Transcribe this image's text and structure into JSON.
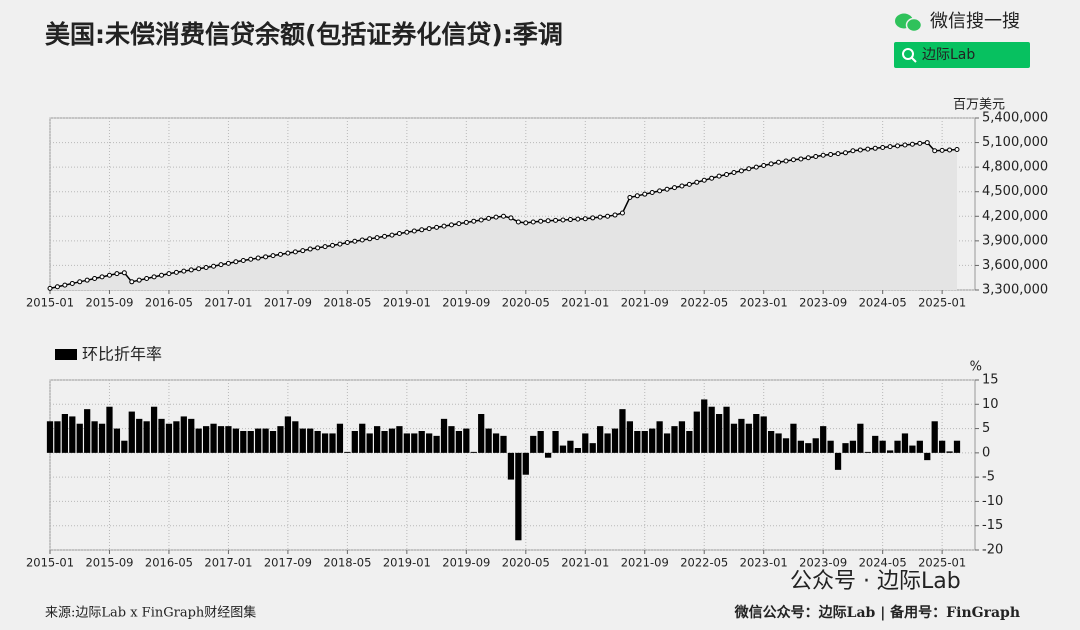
{
  "page": {
    "title": "美国:未偿消费信贷余额(包括证券化信贷):季调",
    "search_brand": "微信搜一搜",
    "search_button": "边际Lab",
    "source": "来源:边际Lab x FinGraph财经图集",
    "footer_right": "微信公众号：边际Lab  |  备用号：FinGraph",
    "watermark": "公众号 · 边际Lab"
  },
  "chart_data": [
    {
      "type": "line",
      "y_label": "百万美元",
      "color": "#000000",
      "fill": "#e4e4e4",
      "grid": true,
      "categories": [
        "2015-01",
        null,
        null,
        null,
        null,
        null,
        null,
        null,
        "2015-09",
        null,
        null,
        null,
        null,
        null,
        null,
        null,
        "2016-05",
        null,
        null,
        null,
        null,
        null,
        null,
        null,
        "2017-01",
        null,
        null,
        null,
        null,
        null,
        null,
        null,
        "2017-09",
        null,
        null,
        null,
        null,
        null,
        null,
        null,
        "2018-05",
        null,
        null,
        null,
        null,
        null,
        null,
        null,
        "2019-01",
        null,
        null,
        null,
        null,
        null,
        null,
        null,
        "2019-09",
        null,
        null,
        null,
        null,
        null,
        null,
        null,
        "2020-05",
        null,
        null,
        null,
        null,
        null,
        null,
        null,
        "2021-01",
        null,
        null,
        null,
        null,
        null,
        null,
        null,
        "2021-09",
        null,
        null,
        null,
        null,
        null,
        null,
        null,
        "2022-05",
        null,
        null,
        null,
        null,
        null,
        null,
        null,
        "2023-01",
        null,
        null,
        null,
        null,
        null,
        null,
        null,
        "2023-09",
        null,
        null,
        null,
        null,
        null,
        null,
        null,
        "2024-05",
        null,
        null,
        null,
        null,
        null,
        null,
        null,
        "2025-01",
        null,
        null
      ],
      "values": [
        3320000,
        3340000,
        3360000,
        3380000,
        3400000,
        3420000,
        3440000,
        3460000,
        3480000,
        3500000,
        3510000,
        3400000,
        3420000,
        3440000,
        3460000,
        3480000,
        3500000,
        3515000,
        3530000,
        3545000,
        3560000,
        3575000,
        3590000,
        3610000,
        3625000,
        3645000,
        3660000,
        3675000,
        3690000,
        3705000,
        3720000,
        3735000,
        3750000,
        3765000,
        3780000,
        3800000,
        3815000,
        3830000,
        3845000,
        3860000,
        3880000,
        3895000,
        3910000,
        3925000,
        3940000,
        3955000,
        3970000,
        3990000,
        4005000,
        4020000,
        4035000,
        4050000,
        4065000,
        4080000,
        4095000,
        4110000,
        4125000,
        4140000,
        4155000,
        4175000,
        4190000,
        4200000,
        4180000,
        4130000,
        4120000,
        4130000,
        4140000,
        4145000,
        4150000,
        4155000,
        4160000,
        4165000,
        4170000,
        4180000,
        4190000,
        4200000,
        4215000,
        4240000,
        4430000,
        4450000,
        4470000,
        4490000,
        4510000,
        4530000,
        4550000,
        4570000,
        4590000,
        4615000,
        4640000,
        4665000,
        4690000,
        4710000,
        4735000,
        4755000,
        4780000,
        4800000,
        4820000,
        4840000,
        4860000,
        4875000,
        4890000,
        4900000,
        4915000,
        4930000,
        4945000,
        4955000,
        4965000,
        4975000,
        5000000,
        5010000,
        5020000,
        5030000,
        5040000,
        5050000,
        5060000,
        5070000,
        5080000,
        5090000,
        5100000,
        5000000,
        5005000,
        5010000,
        5015000
      ],
      "ylim": [
        3300000,
        5400000
      ],
      "yticks": [
        {
          "value": 3300000,
          "label": "3,300,000"
        },
        {
          "value": 3600000,
          "label": "3,600,000"
        },
        {
          "value": 3900000,
          "label": "3,900,000"
        },
        {
          "value": 4200000,
          "label": "4,200,000"
        },
        {
          "value": 4500000,
          "label": "4,500,000"
        },
        {
          "value": 4800000,
          "label": "4,800,000"
        },
        {
          "value": 5100000,
          "label": "5,100,000"
        },
        {
          "value": 5400000,
          "label": "5,400,000"
        }
      ]
    },
    {
      "type": "bar",
      "y_label": "%",
      "grid": true,
      "categories": [
        "2015-01",
        null,
        null,
        null,
        null,
        null,
        null,
        null,
        "2015-09",
        null,
        null,
        null,
        null,
        null,
        null,
        null,
        "2016-05",
        null,
        null,
        null,
        null,
        null,
        null,
        null,
        "2017-01",
        null,
        null,
        null,
        null,
        null,
        null,
        null,
        "2017-09",
        null,
        null,
        null,
        null,
        null,
        null,
        null,
        "2018-05",
        null,
        null,
        null,
        null,
        null,
        null,
        null,
        "2019-01",
        null,
        null,
        null,
        null,
        null,
        null,
        null,
        "2019-09",
        null,
        null,
        null,
        null,
        null,
        null,
        null,
        "2020-05",
        null,
        null,
        null,
        null,
        null,
        null,
        null,
        "2021-01",
        null,
        null,
        null,
        null,
        null,
        null,
        null,
        "2021-09",
        null,
        null,
        null,
        null,
        null,
        null,
        null,
        "2022-05",
        null,
        null,
        null,
        null,
        null,
        null,
        null,
        "2023-01",
        null,
        null,
        null,
        null,
        null,
        null,
        null,
        "2023-09",
        null,
        null,
        null,
        null,
        null,
        null,
        null,
        "2024-05",
        null,
        null,
        null,
        null,
        null,
        null,
        null,
        "2025-01",
        null,
        null
      ],
      "series": [
        {
          "name": "环比折年率",
          "color": "#000000",
          "values": [
            6.5,
            6.5,
            8,
            7.5,
            6,
            9,
            6.5,
            6,
            9.5,
            5,
            2.5,
            8.5,
            7,
            6.5,
            9.5,
            7,
            6,
            6.5,
            7.5,
            7,
            5,
            5.5,
            6,
            5.5,
            5.5,
            5,
            4.5,
            4.5,
            5,
            5,
            4.5,
            5.5,
            7.5,
            6.5,
            5,
            5,
            4.5,
            4,
            4,
            6,
            0.2,
            4.5,
            6,
            4,
            5.5,
            4.5,
            5,
            5.5,
            4,
            4,
            4.5,
            4,
            3.5,
            7,
            5.5,
            4.5,
            5,
            0.2,
            8,
            5,
            4,
            3.5,
            -5.5,
            -18,
            -4.5,
            3.5,
            4.5,
            -1,
            4.5,
            1.5,
            2.5,
            1,
            4,
            2,
            5.5,
            4,
            5,
            9,
            6.5,
            4.5,
            4.5,
            5,
            6.5,
            4,
            5.5,
            6.5,
            4.5,
            8.5,
            11,
            9.5,
            8,
            9.5,
            6,
            7,
            6,
            8,
            7.5,
            4.5,
            4,
            3,
            6,
            2.5,
            2,
            3,
            5.5,
            2.5,
            -3.5,
            2,
            2.5,
            6,
            0.2,
            3.5,
            2.5,
            0.5,
            2.5,
            4,
            1.5,
            2.5,
            -1.5,
            6.5,
            2.5,
            0.3,
            2.5
          ]
        }
      ],
      "ylim": [
        -20,
        15
      ],
      "yticks": [
        -20,
        -15,
        -10,
        -5,
        0,
        5,
        10,
        15
      ]
    }
  ]
}
